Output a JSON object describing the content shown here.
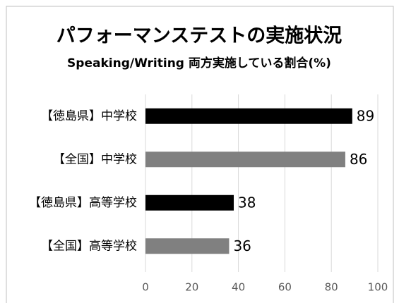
{
  "chart_data": {
    "type": "barh",
    "title": "パフォーマンステストの実施状況",
    "subtitle": "Speaking/Writing 両方実施している割合(%)",
    "categories": [
      "【徳島県】中学校",
      "【全国】中学校",
      "【徳島県】高等学校",
      "【全国】高等学校"
    ],
    "values": [
      89,
      86,
      38,
      36
    ],
    "colors": [
      "#000000",
      "#808080",
      "#000000",
      "#808080"
    ],
    "xlim": [
      0,
      100
    ],
    "xticks": [
      0,
      20,
      40,
      60,
      80,
      100
    ],
    "grid": true
  }
}
